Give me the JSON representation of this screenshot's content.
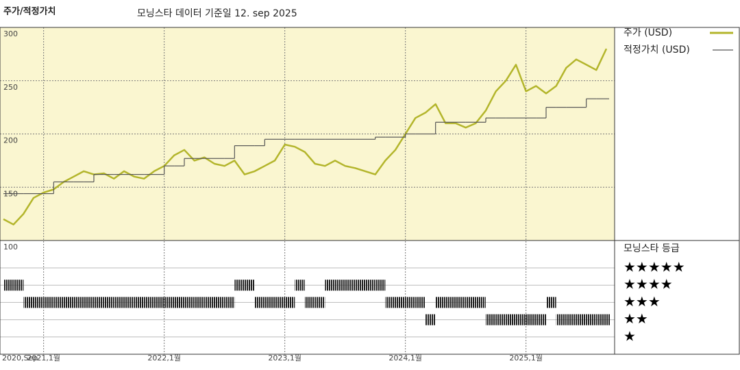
{
  "chart_data": [
    {
      "type": "line",
      "title": "주가/적정가치",
      "subtitle": "모닝스타 데이터 기준일 12. sep 2025",
      "x": [
        "2020-09",
        "2020-10",
        "2020-11",
        "2020-12",
        "2021-01",
        "2021-02",
        "2021-03",
        "2021-04",
        "2021-05",
        "2021-06",
        "2021-07",
        "2021-08",
        "2021-09",
        "2021-10",
        "2021-11",
        "2021-12",
        "2022-01",
        "2022-02",
        "2022-03",
        "2022-04",
        "2022-05",
        "2022-06",
        "2022-07",
        "2022-08",
        "2022-09",
        "2022-10",
        "2022-11",
        "2022-12",
        "2023-01",
        "2023-02",
        "2023-03",
        "2023-04",
        "2023-05",
        "2023-06",
        "2023-07",
        "2023-08",
        "2023-09",
        "2023-10",
        "2023-11",
        "2023-12",
        "2024-01",
        "2024-02",
        "2024-03",
        "2024-04",
        "2024-05",
        "2024-06",
        "2024-07",
        "2024-08",
        "2024-09",
        "2024-10",
        "2024-11",
        "2024-12",
        "2025-01",
        "2025-02",
        "2025-03",
        "2025-04",
        "2025-05",
        "2025-06",
        "2025-07",
        "2025-08",
        "2025-09"
      ],
      "series": [
        {
          "name": "주가 (USD)",
          "color": "#b3b52b",
          "style": "line",
          "values": [
            120,
            115,
            125,
            140,
            145,
            148,
            155,
            160,
            165,
            162,
            163,
            158,
            165,
            160,
            158,
            165,
            170,
            180,
            185,
            175,
            178,
            172,
            170,
            175,
            162,
            165,
            170,
            175,
            190,
            188,
            183,
            172,
            170,
            175,
            170,
            168,
            165,
            162,
            175,
            185,
            200,
            215,
            220,
            228,
            210,
            210,
            206,
            210,
            222,
            240,
            250,
            265,
            240,
            245,
            238,
            245,
            262,
            270,
            265,
            260,
            280
          ]
        },
        {
          "name": "적정가치 (USD)",
          "color": "#555555",
          "style": "step",
          "values": [
            144,
            144,
            144,
            144,
            144,
            155,
            155,
            155,
            155,
            162,
            162,
            162,
            162,
            162,
            162,
            162,
            170,
            170,
            177,
            177,
            177,
            177,
            177,
            189,
            189,
            189,
            195,
            195,
            195,
            195,
            195,
            195,
            195,
            195,
            195,
            195,
            195,
            197,
            197,
            197,
            200,
            200,
            200,
            211,
            211,
            211,
            211,
            211,
            215,
            215,
            215,
            215,
            215,
            215,
            225,
            225,
            225,
            225,
            233,
            233,
            233
          ]
        }
      ],
      "ylim": [
        100,
        300
      ],
      "yticks": [
        100,
        150,
        200,
        250,
        300
      ],
      "xticks": [
        {
          "value": "2020-09",
          "label": "2020,Sep"
        },
        {
          "value": "2021-01",
          "label": "2021,1월"
        },
        {
          "value": "2022-01",
          "label": "2022,1월"
        },
        {
          "value": "2023-01",
          "label": "2023,1월"
        },
        {
          "value": "2024-01",
          "label": "2024,1월"
        },
        {
          "value": "2025-01",
          "label": "2025,1월"
        }
      ],
      "grid": true,
      "background": "#faf6d0"
    },
    {
      "type": "rating",
      "legend_title": "모닝스타 등급",
      "color": "#222222",
      "x": [
        "2020-09",
        "2020-10",
        "2020-11",
        "2020-12",
        "2021-01",
        "2021-02",
        "2021-03",
        "2021-04",
        "2021-05",
        "2021-06",
        "2021-07",
        "2021-08",
        "2021-09",
        "2021-10",
        "2021-11",
        "2021-12",
        "2022-01",
        "2022-02",
        "2022-03",
        "2022-04",
        "2022-05",
        "2022-06",
        "2022-07",
        "2022-08",
        "2022-09",
        "2022-10",
        "2022-11",
        "2022-12",
        "2023-01",
        "2023-02",
        "2023-03",
        "2023-04",
        "2023-05",
        "2023-06",
        "2023-07",
        "2023-08",
        "2023-09",
        "2023-10",
        "2023-11",
        "2023-12",
        "2024-01",
        "2024-02",
        "2024-03",
        "2024-04",
        "2024-05",
        "2024-06",
        "2024-07",
        "2024-08",
        "2024-09",
        "2024-10",
        "2024-11",
        "2024-12",
        "2025-01",
        "2025-02",
        "2025-03",
        "2025-04",
        "2025-05",
        "2025-06",
        "2025-07",
        "2025-08",
        "2025-09"
      ],
      "values": [
        4,
        4,
        3,
        3,
        3,
        3,
        3,
        3,
        3,
        3,
        3,
        3,
        3,
        3,
        3,
        3,
        3,
        3,
        3,
        3,
        3,
        3,
        3,
        4,
        4,
        3,
        3,
        3,
        3,
        4,
        3,
        3,
        4,
        4,
        4,
        4,
        4,
        4,
        3,
        3,
        3,
        3,
        2,
        3,
        3,
        3,
        3,
        3,
        2,
        2,
        2,
        2,
        2,
        2,
        3,
        2,
        2,
        2,
        2,
        2,
        2
      ],
      "yticks": [
        {
          "value": 5,
          "label": "★★★★★"
        },
        {
          "value": 4,
          "label": "★★★★"
        },
        {
          "value": 3,
          "label": "★★★"
        },
        {
          "value": 2,
          "label": "★★"
        },
        {
          "value": 1,
          "label": "★"
        }
      ]
    }
  ]
}
